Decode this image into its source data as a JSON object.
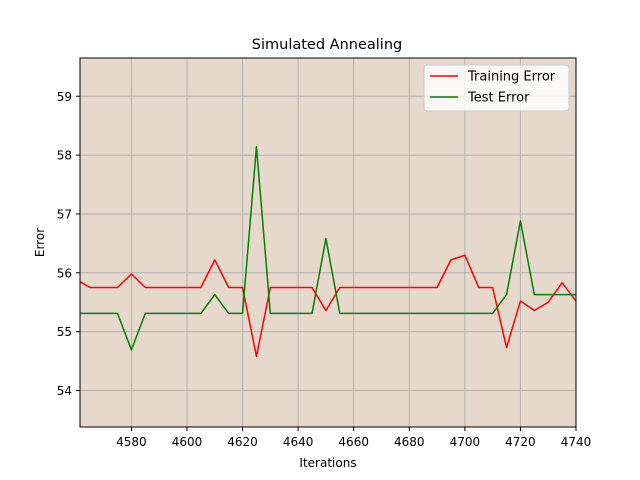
{
  "chart_data": {
    "type": "line",
    "title": "Simulated Annealing",
    "xlabel": "Iterations",
    "ylabel": "Error",
    "xlim": [
      4561.5,
      4740
    ],
    "ylim": [
      53.38,
      59.65
    ],
    "xticks": [
      4580,
      4600,
      4620,
      4640,
      4660,
      4680,
      4700,
      4720,
      4740
    ],
    "yticks": [
      54,
      55,
      56,
      57,
      58,
      59
    ],
    "grid": true,
    "legend_position": "top-right",
    "background_color": "#e6d9cc",
    "series": [
      {
        "name": "Training Error",
        "color": "#ff0000",
        "x": [
          4561.5,
          4565,
          4570,
          4575,
          4580,
          4585,
          4590,
          4595,
          4600,
          4605,
          4610,
          4615,
          4620,
          4625,
          4630,
          4635,
          4640,
          4645,
          4650,
          4655,
          4660,
          4665,
          4670,
          4675,
          4680,
          4685,
          4690,
          4695,
          4700,
          4705,
          4710,
          4715,
          4720,
          4725,
          4730,
          4735,
          4740
        ],
        "y": [
          55.85,
          55.75,
          55.75,
          55.75,
          55.98,
          55.75,
          55.75,
          55.75,
          55.75,
          55.75,
          56.22,
          55.75,
          55.75,
          54.58,
          55.75,
          55.75,
          55.75,
          55.75,
          55.36,
          55.75,
          55.75,
          55.75,
          55.75,
          55.75,
          55.75,
          55.75,
          55.75,
          56.22,
          56.3,
          55.75,
          55.75,
          54.73,
          55.52,
          55.36,
          55.5,
          55.83,
          55.52
        ]
      },
      {
        "name": "Test Error",
        "color": "#008000",
        "x": [
          4561.5,
          4565,
          4570,
          4575,
          4580,
          4585,
          4590,
          4595,
          4600,
          4605,
          4610,
          4615,
          4620,
          4625,
          4630,
          4635,
          4640,
          4645,
          4650,
          4655,
          4660,
          4665,
          4670,
          4675,
          4680,
          4685,
          4690,
          4695,
          4700,
          4705,
          4710,
          4715,
          4720,
          4725,
          4730,
          4735,
          4740
        ],
        "y": [
          55.31,
          55.31,
          55.31,
          55.31,
          54.69,
          55.31,
          55.31,
          55.31,
          55.31,
          55.31,
          55.63,
          55.31,
          55.31,
          58.14,
          55.31,
          55.31,
          55.31,
          55.31,
          56.58,
          55.31,
          55.31,
          55.31,
          55.31,
          55.31,
          55.31,
          55.31,
          55.31,
          55.31,
          55.31,
          55.31,
          55.31,
          55.63,
          56.88,
          55.63,
          55.63,
          55.63,
          55.63
        ]
      }
    ]
  }
}
